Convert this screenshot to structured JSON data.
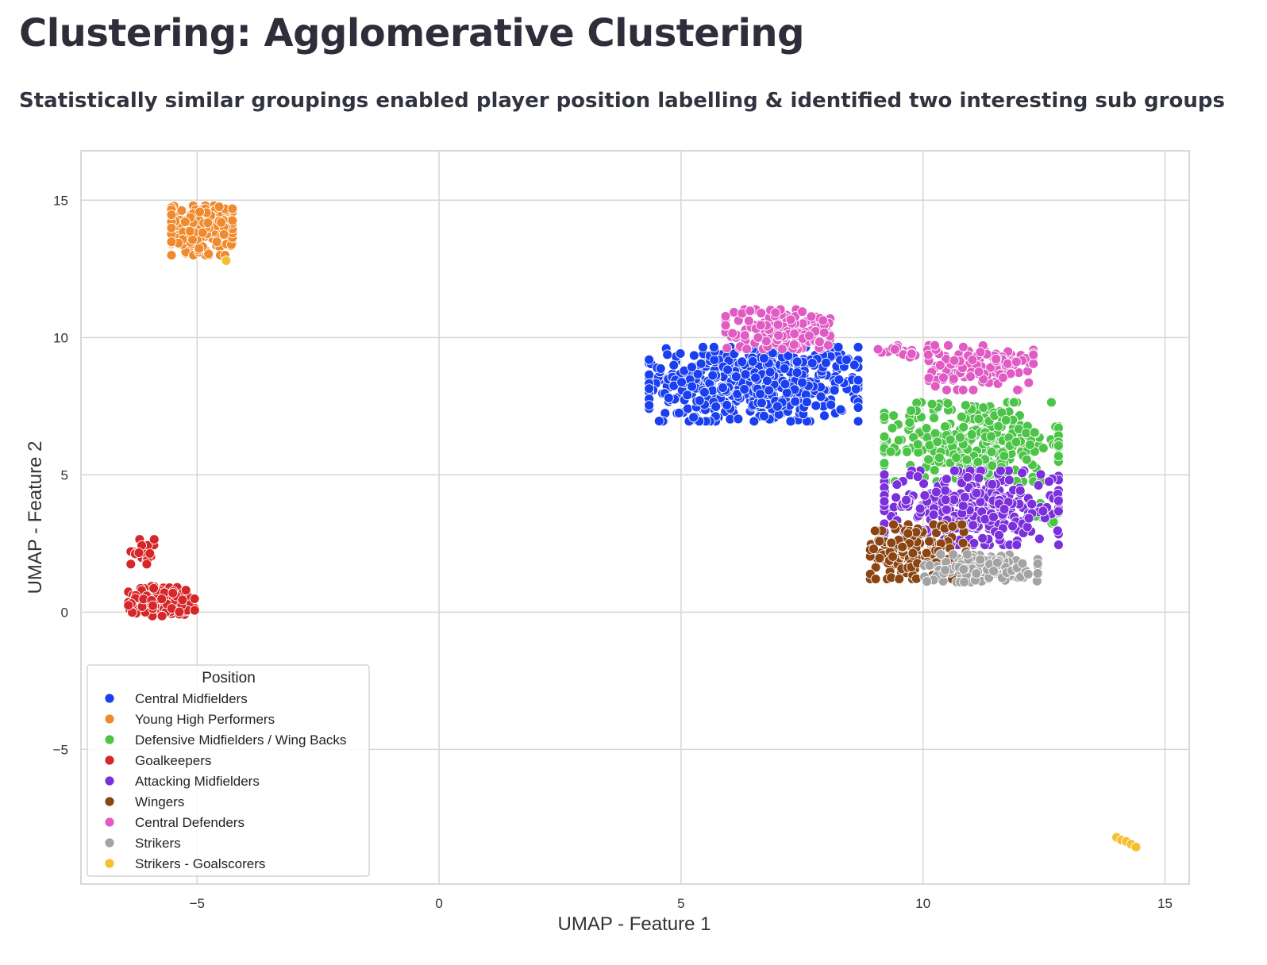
{
  "page": {
    "title": "Clustering: Agglomerative Clustering",
    "subtitle": "Statistically similar groupings enabled player position labelling & identified two interesting sub groups"
  },
  "chart_data": {
    "type": "scatter",
    "xlabel": "UMAP - Feature 1",
    "ylabel": "UMAP - Feature 2",
    "xlim": [
      -7.4,
      15.5
    ],
    "ylim": [
      -9.9,
      16.8
    ],
    "xticks": [
      -5,
      0,
      5,
      10,
      15
    ],
    "yticks": [
      -5,
      0,
      5,
      10,
      15
    ],
    "xtick_labels": [
      "−5",
      "0",
      "5",
      "10",
      "15"
    ],
    "ytick_labels": [
      "−5",
      "0",
      "5",
      "10",
      "15"
    ],
    "grid": true,
    "legend": {
      "title": "Position",
      "placement": "bottom-left"
    },
    "series": [
      {
        "name": "Central Midfielders",
        "color": "#1a3ff0",
        "clusters": [
          {
            "cx": 6.5,
            "cy": 8.3,
            "sx": 1.2,
            "sy": 0.75,
            "n": 520
          }
        ]
      },
      {
        "name": "Young High Performers",
        "color": "#f08a2c",
        "clusters": [
          {
            "cx": -4.9,
            "cy": 13.9,
            "sx": 0.35,
            "sy": 0.5,
            "n": 180
          }
        ]
      },
      {
        "name": "Defensive Midfielders / Wing Backs",
        "color": "#4cc447",
        "clusters": [
          {
            "cx": 11.0,
            "cy": 6.2,
            "sx": 1.0,
            "sy": 0.8,
            "n": 300
          },
          {
            "cx": 12.6,
            "cy": 3.6,
            "sx": 0.15,
            "sy": 0.2,
            "n": 15
          }
        ]
      },
      {
        "name": "Goalkeepers",
        "color": "#d62728",
        "clusters": [
          {
            "cx": -5.7,
            "cy": 0.4,
            "sx": 0.4,
            "sy": 0.3,
            "n": 150
          },
          {
            "cx": -6.1,
            "cy": 2.2,
            "sx": 0.15,
            "sy": 0.25,
            "n": 20
          }
        ]
      },
      {
        "name": "Attacking Midfielders",
        "color": "#7b30dc",
        "clusters": [
          {
            "cx": 11.0,
            "cy": 3.8,
            "sx": 1.0,
            "sy": 0.75,
            "n": 320
          }
        ]
      },
      {
        "name": "Wingers",
        "color": "#8b4513",
        "clusters": [
          {
            "cx": 9.9,
            "cy": 2.2,
            "sx": 0.55,
            "sy": 0.55,
            "n": 160
          }
        ]
      },
      {
        "name": "Central Defenders",
        "color": "#e05cc4",
        "clusters": [
          {
            "cx": 7.0,
            "cy": 10.3,
            "sx": 0.6,
            "sy": 0.4,
            "n": 160
          },
          {
            "cx": 11.2,
            "cy": 8.9,
            "sx": 0.6,
            "sy": 0.45,
            "n": 140
          },
          {
            "cx": 9.7,
            "cy": 9.5,
            "sx": 0.35,
            "sy": 0.12,
            "n": 25
          }
        ]
      },
      {
        "name": "Strikers",
        "color": "#a3a3a3",
        "clusters": [
          {
            "cx": 11.2,
            "cy": 1.6,
            "sx": 0.65,
            "sy": 0.28,
            "n": 140
          }
        ]
      },
      {
        "name": "Strikers - Goalscorers",
        "color": "#f5c030",
        "points": [
          [
            14.0,
            -8.2
          ],
          [
            14.1,
            -8.3
          ],
          [
            14.2,
            -8.35
          ],
          [
            14.3,
            -8.45
          ],
          [
            14.4,
            -8.55
          ],
          [
            -4.4,
            12.8
          ]
        ]
      }
    ]
  }
}
